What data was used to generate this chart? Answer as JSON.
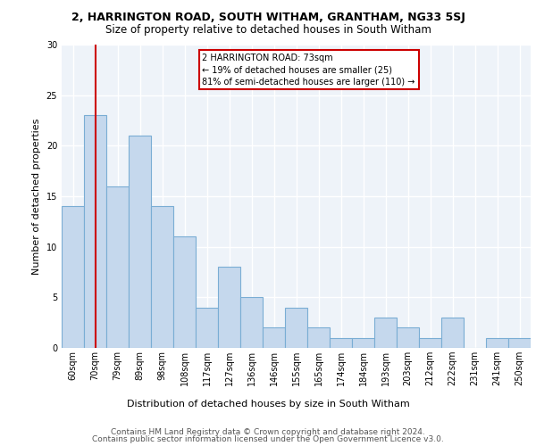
{
  "title1": "2, HARRINGTON ROAD, SOUTH WITHAM, GRANTHAM, NG33 5SJ",
  "title2": "Size of property relative to detached houses in South Witham",
  "xlabel": "Distribution of detached houses by size in South Witham",
  "ylabel": "Number of detached properties",
  "categories": [
    "60sqm",
    "70sqm",
    "79sqm",
    "89sqm",
    "98sqm",
    "108sqm",
    "117sqm",
    "127sqm",
    "136sqm",
    "146sqm",
    "155sqm",
    "165sqm",
    "174sqm",
    "184sqm",
    "193sqm",
    "203sqm",
    "212sqm",
    "222sqm",
    "231sqm",
    "241sqm",
    "250sqm"
  ],
  "values": [
    14,
    23,
    16,
    21,
    14,
    11,
    4,
    8,
    5,
    2,
    4,
    2,
    1,
    1,
    3,
    2,
    1,
    3,
    0,
    1,
    1
  ],
  "bar_color": "#c5d8ed",
  "bar_edgecolor": "#7aadd4",
  "bar_linewidth": 0.8,
  "vline_x": 1.0,
  "vline_color": "#cc0000",
  "annotation_line1": "2 HARRINGTON ROAD: 73sqm",
  "annotation_line2": "← 19% of detached houses are smaller (25)",
  "annotation_line3": "81% of semi-detached houses are larger (110) →",
  "annotation_box_color": "white",
  "annotation_box_edgecolor": "#cc0000",
  "footnote1": "Contains HM Land Registry data © Crown copyright and database right 2024.",
  "footnote2": "Contains public sector information licensed under the Open Government Licence v3.0.",
  "ylim": [
    0,
    30
  ],
  "background_color": "#eef3f9",
  "grid_color": "white",
  "title1_fontsize": 9,
  "title2_fontsize": 8.5,
  "tick_fontsize": 7,
  "ylabel_fontsize": 8,
  "xlabel_fontsize": 8,
  "annotation_fontsize": 7,
  "footnote_fontsize": 6.5
}
